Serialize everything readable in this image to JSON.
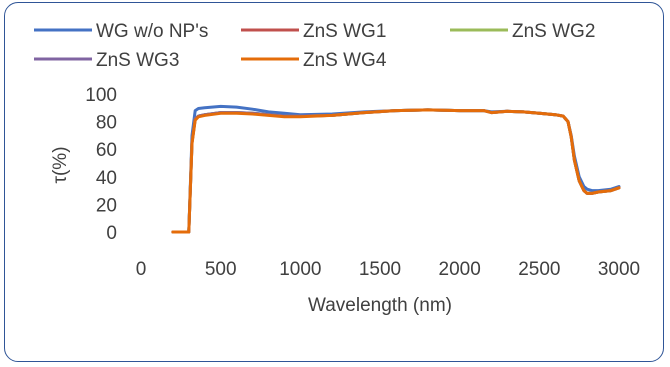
{
  "chart_data": {
    "type": "line",
    "title": "",
    "xlabel": "Wavelength (nm)",
    "ylabel": "τ(%)",
    "xlim": [
      0,
      3000
    ],
    "ylim": [
      0,
      100
    ],
    "x_ticks": [
      "0",
      "500",
      "1000",
      "1500",
      "2000",
      "2500",
      "3000"
    ],
    "y_ticks": [
      "0",
      "20",
      "40",
      "60",
      "80",
      "100"
    ],
    "grid": false,
    "legend_position": "top",
    "series": [
      {
        "name": "WG w/o NP's",
        "color": "#4472c4",
        "x": [
          200,
          280,
          300,
          320,
          340,
          360,
          400,
          500,
          600,
          700,
          800,
          900,
          1000,
          1200,
          1400,
          1600,
          1800,
          2000,
          2150,
          2200,
          2300,
          2400,
          2500,
          2600,
          2650,
          2680,
          2700,
          2720,
          2750,
          2780,
          2800,
          2830,
          2870,
          2950,
          3000
        ],
        "y": [
          0,
          0,
          0,
          70,
          88,
          89.5,
          90,
          91,
          90.5,
          89,
          87,
          86,
          85,
          85.5,
          87,
          88,
          88.5,
          88,
          88,
          87,
          87.5,
          87,
          86,
          85,
          84,
          80,
          70,
          55,
          40,
          33,
          31,
          30,
          30,
          31,
          33
        ]
      },
      {
        "name": "ZnS WG1",
        "color": "#c0504d",
        "x": [
          200,
          280,
          300,
          320,
          340,
          360,
          400,
          500,
          600,
          700,
          800,
          900,
          1000,
          1200,
          1400,
          1600,
          1800,
          2000,
          2150,
          2200,
          2300,
          2400,
          2500,
          2600,
          2650,
          2680,
          2700,
          2720,
          2750,
          2780,
          2800,
          2830,
          2870,
          2950,
          3000
        ],
        "y": [
          0,
          0,
          0,
          65,
          82,
          84,
          85,
          86.5,
          86.5,
          86,
          85,
          84,
          84,
          84.5,
          86.5,
          88,
          88.5,
          88,
          88,
          86.5,
          87.5,
          87,
          86,
          85,
          84,
          80,
          69,
          52,
          37,
          30,
          28,
          28,
          29,
          30,
          32
        ]
      },
      {
        "name": "ZnS WG2",
        "color": "#9bbb59",
        "x": [
          200,
          280,
          300,
          320,
          340,
          360,
          400,
          500,
          600,
          700,
          800,
          900,
          1000,
          1200,
          1400,
          1600,
          1800,
          2000,
          2150,
          2200,
          2300,
          2400,
          2500,
          2600,
          2650,
          2680,
          2700,
          2720,
          2750,
          2780,
          2800,
          2830,
          2870,
          2950,
          3000
        ],
        "y": [
          0,
          0,
          0,
          65,
          82,
          84,
          85,
          86.5,
          86.5,
          86,
          85,
          84,
          84,
          84.5,
          86.5,
          88,
          88.5,
          88,
          88,
          86.5,
          87.5,
          87,
          86,
          85,
          84,
          80,
          69,
          52,
          37,
          30,
          28,
          28,
          29,
          30,
          32
        ]
      },
      {
        "name": "ZnS WG3",
        "color": "#8064a2",
        "x": [
          200,
          280,
          300,
          320,
          340,
          360,
          400,
          500,
          600,
          700,
          800,
          900,
          1000,
          1200,
          1400,
          1600,
          1800,
          2000,
          2150,
          2200,
          2300,
          2400,
          2500,
          2600,
          2650,
          2680,
          2700,
          2720,
          2750,
          2780,
          2800,
          2830,
          2870,
          2950,
          3000
        ],
        "y": [
          0,
          0,
          0,
          65,
          82,
          84,
          85,
          86.5,
          86.5,
          86,
          85,
          84,
          84,
          84.5,
          86.5,
          88,
          88.5,
          88,
          88,
          86.5,
          87.5,
          87,
          86,
          85,
          84,
          80,
          69,
          52,
          37,
          30,
          28,
          28,
          29,
          30,
          32
        ]
      },
      {
        "name": "ZnS WG4",
        "color": "#e46c0a",
        "x": [
          200,
          280,
          300,
          320,
          340,
          360,
          400,
          500,
          600,
          700,
          800,
          900,
          1000,
          1200,
          1400,
          1600,
          1800,
          2000,
          2150,
          2200,
          2300,
          2400,
          2500,
          2600,
          2650,
          2680,
          2700,
          2720,
          2750,
          2780,
          2800,
          2830,
          2870,
          2950,
          3000
        ],
        "y": [
          0,
          0,
          0,
          64,
          81,
          83.5,
          84.5,
          86,
          86,
          85.5,
          84.5,
          83.5,
          83.5,
          84.5,
          86.5,
          88,
          88.5,
          88,
          88,
          86.5,
          87.5,
          87,
          86,
          85,
          84,
          80,
          69,
          52,
          37,
          30,
          28,
          28,
          29,
          30,
          32
        ]
      }
    ]
  }
}
